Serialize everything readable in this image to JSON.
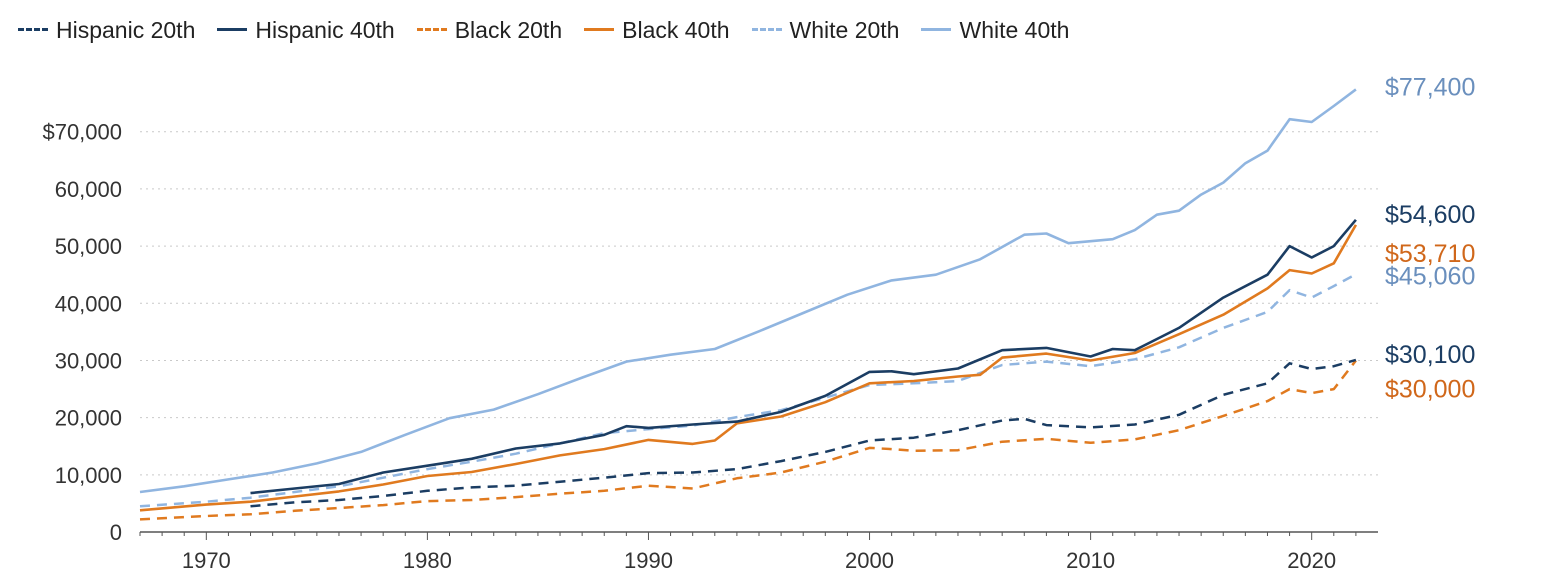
{
  "chart_data": {
    "type": "line",
    "title": "",
    "xlabel": "",
    "ylabel": "",
    "xlim": [
      1967,
      2023
    ],
    "ylim": [
      0,
      77400
    ],
    "grid": true,
    "legend_position": "top",
    "x_ticks": [
      {
        "value": 1970,
        "label": "1970"
      },
      {
        "value": 1980,
        "label": "1980"
      },
      {
        "value": 1990,
        "label": "1990"
      },
      {
        "value": 2000,
        "label": "2000"
      },
      {
        "value": 2010,
        "label": "2010"
      },
      {
        "value": 2020,
        "label": "2020"
      }
    ],
    "y_ticks": [
      {
        "value": 0,
        "label": "0"
      },
      {
        "value": 10000,
        "label": "10,000"
      },
      {
        "value": 20000,
        "label": "20,000"
      },
      {
        "value": 30000,
        "label": "30,000"
      },
      {
        "value": 40000,
        "label": "40,000"
      },
      {
        "value": 50000,
        "label": "50,000"
      },
      {
        "value": 60000,
        "label": "60,000"
      },
      {
        "value": 70000,
        "label": "$70,000"
      }
    ],
    "series": [
      {
        "name": "Hispanic 20th",
        "color": "#1b3d63",
        "dash": true,
        "x": [
          1972,
          1974,
          1976,
          1978,
          1980,
          1982,
          1984,
          1986,
          1988,
          1990,
          1992,
          1994,
          1996,
          1998,
          2000,
          2002,
          2004,
          2006,
          2007,
          2008,
          2010,
          2012,
          2014,
          2016,
          2018,
          2019,
          2020,
          2021,
          2022
        ],
        "y": [
          4500,
          5200,
          5600,
          6300,
          7200,
          7800,
          8100,
          8800,
          9500,
          10300,
          10400,
          11000,
          12400,
          14000,
          16000,
          16500,
          17800,
          19500,
          19800,
          18700,
          18300,
          18800,
          20500,
          24000,
          26000,
          29500,
          28500,
          29000,
          30100
        ],
        "end_label": "$30,100"
      },
      {
        "name": "Hispanic 40th",
        "color": "#1b3d63",
        "dash": false,
        "x": [
          1972,
          1974,
          1976,
          1978,
          1980,
          1982,
          1984,
          1986,
          1988,
          1989,
          1990,
          1992,
          1994,
          1996,
          1998,
          2000,
          2001,
          2002,
          2004,
          2006,
          2008,
          2010,
          2011,
          2012,
          2014,
          2016,
          2018,
          2019,
          2020,
          2021,
          2022
        ],
        "y": [
          6800,
          7600,
          8400,
          10400,
          11600,
          12800,
          14600,
          15500,
          17000,
          18500,
          18200,
          18800,
          19300,
          21000,
          23800,
          28000,
          28100,
          27600,
          28600,
          31800,
          32200,
          30700,
          32000,
          31800,
          35700,
          41000,
          45000,
          50000,
          48000,
          50000,
          54600
        ],
        "end_label": "$54,600"
      },
      {
        "name": "Black 20th",
        "color": "#e07a1f",
        "dash": true,
        "x": [
          1967,
          1970,
          1972,
          1974,
          1976,
          1978,
          1980,
          1982,
          1984,
          1986,
          1988,
          1990,
          1992,
          1994,
          1996,
          1998,
          2000,
          2001,
          2002,
          2004,
          2006,
          2008,
          2010,
          2012,
          2014,
          2016,
          2018,
          2019,
          2020,
          2021,
          2022
        ],
        "y": [
          2200,
          2800,
          3100,
          3700,
          4200,
          4700,
          5400,
          5600,
          6100,
          6700,
          7200,
          8100,
          7600,
          9400,
          10400,
          12300,
          14700,
          14500,
          14200,
          14300,
          15800,
          16300,
          15600,
          16200,
          17800,
          20300,
          22900,
          25000,
          24300,
          25000,
          30000
        ],
        "end_label": "$30,000"
      },
      {
        "name": "Black 40th",
        "color": "#e07a1f",
        "dash": false,
        "x": [
          1967,
          1970,
          1972,
          1974,
          1976,
          1978,
          1980,
          1982,
          1984,
          1986,
          1988,
          1990,
          1992,
          1993,
          1994,
          1996,
          1998,
          2000,
          2002,
          2004,
          2005,
          2006,
          2008,
          2010,
          2012,
          2014,
          2016,
          2018,
          2019,
          2020,
          2021,
          2022
        ],
        "y": [
          3800,
          4800,
          5300,
          6200,
          7100,
          8300,
          9800,
          10500,
          11900,
          13400,
          14500,
          16100,
          15400,
          16000,
          19000,
          20200,
          22700,
          26000,
          26400,
          27200,
          27500,
          30500,
          31200,
          30000,
          31300,
          34600,
          38000,
          42600,
          45800,
          45200,
          47000,
          53710
        ],
        "end_label": "$53,710"
      },
      {
        "name": "White 20th",
        "color": "#90b5e0",
        "dash": true,
        "x": [
          1967,
          1970,
          1972,
          1974,
          1976,
          1978,
          1980,
          1982,
          1984,
          1986,
          1988,
          1990,
          1992,
          1994,
          1996,
          1998,
          2000,
          2002,
          2004,
          2006,
          2008,
          2010,
          2012,
          2014,
          2016,
          2018,
          2019,
          2020,
          2021,
          2022
        ],
        "y": [
          4500,
          5300,
          6000,
          7000,
          8000,
          9500,
          11000,
          12300,
          13700,
          15500,
          17300,
          18000,
          18600,
          20100,
          21300,
          23500,
          25700,
          26000,
          26400,
          29200,
          29800,
          29000,
          30200,
          32300,
          35700,
          38500,
          42300,
          41000,
          43000,
          45060
        ],
        "end_label": "$45,060"
      },
      {
        "name": "White 40th",
        "color": "#90b5e0",
        "dash": false,
        "x": [
          1967,
          1969,
          1971,
          1973,
          1975,
          1977,
          1979,
          1981,
          1983,
          1985,
          1987,
          1989,
          1991,
          1993,
          1995,
          1997,
          1999,
          2001,
          2003,
          2005,
          2007,
          2008,
          2009,
          2011,
          2012,
          2013,
          2014,
          2015,
          2016,
          2017,
          2018,
          2019,
          2020,
          2021,
          2022
        ],
        "y": [
          7000,
          8000,
          9200,
          10400,
          12000,
          14000,
          17000,
          19900,
          21400,
          24100,
          27000,
          29800,
          31000,
          32000,
          35100,
          38300,
          41500,
          44000,
          45000,
          47700,
          52000,
          52200,
          50500,
          51200,
          52800,
          55500,
          56200,
          59000,
          61100,
          64500,
          66700,
          72200,
          71700,
          74500,
          77400
        ],
        "end_label": "$77,400"
      }
    ]
  },
  "legend": [
    {
      "label": "Hispanic 20th",
      "color": "#1b3d63",
      "dash": true
    },
    {
      "label": "Hispanic 40th",
      "color": "#1b3d63",
      "dash": false
    },
    {
      "label": "Black 20th",
      "color": "#e07a1f",
      "dash": true
    },
    {
      "label": "Black 40th",
      "color": "#e07a1f",
      "dash": false
    },
    {
      "label": "White 20th",
      "color": "#90b5e0",
      "dash": true
    },
    {
      "label": "White 40th",
      "color": "#90b5e0",
      "dash": false
    }
  ],
  "end_label_colors": {
    "$77,400": "#6a8fbd",
    "$54,600": "#1b3d63",
    "$53,710": "#d0671a",
    "$45,060": "#6a8fbd",
    "$30,100": "#1b3d63",
    "$30,000": "#d0671a"
  }
}
